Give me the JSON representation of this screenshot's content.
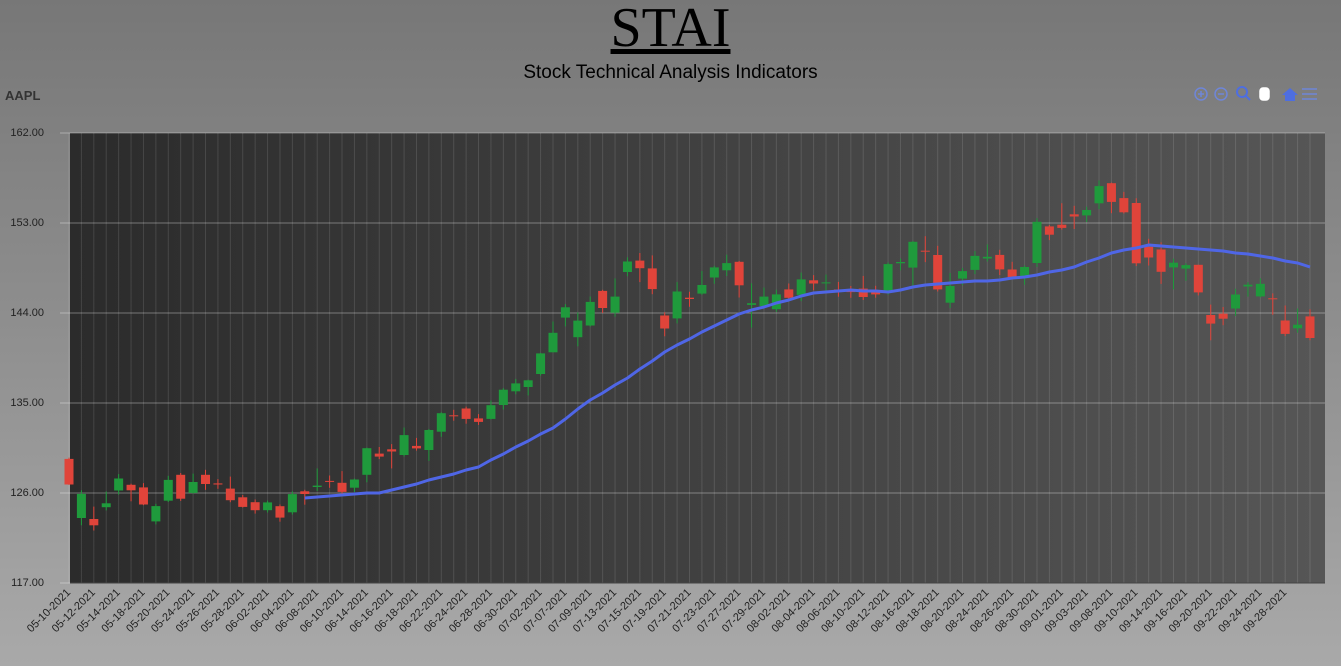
{
  "chart_data": {
    "type": "candlestick",
    "title": "STAI",
    "subtitle": "Stock Technical Analysis Indicators",
    "ticker": "AAPL",
    "categories": [
      "05-10-2021",
      null,
      "05-12-2021",
      null,
      "05-14-2021",
      null,
      "05-18-2021",
      null,
      "05-20-2021",
      null,
      "05-24-2021",
      null,
      "05-26-2021",
      null,
      "05-28-2021",
      null,
      "06-02-2021",
      null,
      "06-04-2021",
      null,
      "06-08-2021",
      null,
      "06-10-2021",
      null,
      "06-14-2021",
      null,
      "06-16-2021",
      null,
      "06-18-2021",
      null,
      "06-22-2021",
      null,
      "06-24-2021",
      null,
      "06-28-2021",
      null,
      "06-30-2021",
      null,
      "07-02-2021",
      null,
      "07-07-2021",
      null,
      "07-09-2021",
      null,
      "07-13-2021",
      null,
      "07-15-2021",
      null,
      "07-19-2021",
      null,
      "07-21-2021",
      null,
      "07-23-2021",
      null,
      "07-27-2021",
      null,
      "07-29-2021",
      null,
      "08-02-2021",
      null,
      "08-04-2021",
      null,
      "08-06-2021",
      null,
      "08-10-2021",
      null,
      "08-12-2021",
      null,
      "08-16-2021",
      null,
      "08-18-2021",
      null,
      "08-20-2021",
      null,
      "08-24-2021",
      null,
      "08-26-2021",
      null,
      "08-30-2021",
      null,
      "09-01-2021",
      null,
      "09-03-2021",
      null,
      "09-08-2021",
      null,
      "09-10-2021",
      null,
      "09-14-2021",
      null,
      "09-16-2021",
      null,
      "09-20-2021",
      null,
      "09-22-2021",
      null,
      "09-24-2021",
      null,
      "09-28-2021",
      null,
      null
    ],
    "open": [
      129.41,
      123.5,
      123.4,
      124.58,
      126.25,
      126.82,
      126.56,
      123.16,
      125.23,
      127.82,
      126.01,
      127.82,
      126.96,
      126.44,
      125.57,
      125.08,
      124.28,
      124.68,
      124.07,
      126.17,
      126.6,
      127.21,
      127.02,
      126.53,
      127.82,
      129.94,
      130.37,
      129.8,
      130.71,
      130.3,
      132.13,
      133.77,
      134.45,
      133.46,
      133.41,
      134.8,
      136.17,
      136.6,
      137.9,
      140.07,
      143.54,
      141.58,
      142.75,
      146.21,
      144.03,
      148.1,
      149.24,
      148.46,
      143.75,
      143.46,
      145.53,
      145.94,
      147.55,
      148.27,
      149.12,
      144.81,
      144.69,
      144.38,
      146.36,
      145.81,
      147.27,
      146.98,
      146.35,
      146.2,
      146.44,
      146.05,
      146.19,
      148.97,
      148.54,
      150.23,
      149.8,
      145.03,
      147.44,
      148.31,
      149.45,
      149.81,
      148.35,
      147.48,
      149.0,
      152.66,
      152.83,
      153.87,
      153.76,
      154.97,
      156.98,
      155.49,
      155.0,
      150.63,
      150.35,
      148.56,
      148.44,
      148.82,
      143.8,
      143.93,
      144.45,
      146.65,
      145.66,
      145.47,
      143.25,
      142.47,
      143.66
    ],
    "high": [
      129.54,
      126.27,
      124.64,
      126.15,
      127.89,
      126.93,
      126.99,
      124.92,
      127.72,
      128.0,
      127.94,
      128.32,
      127.39,
      127.64,
      125.8,
      125.35,
      125.24,
      124.85,
      126.16,
      126.32,
      128.46,
      127.75,
      128.19,
      127.44,
      130.54,
      130.6,
      130.89,
      132.55,
      131.51,
      132.41,
      134.08,
      134.32,
      134.64,
      133.89,
      135.25,
      136.49,
      137.41,
      137.33,
      140.0,
      143.15,
      144.89,
      144.06,
      145.65,
      146.32,
      147.46,
      149.57,
      150.0,
      149.76,
      144.07,
      147.1,
      146.13,
      148.2,
      148.72,
      149.83,
      149.21,
      146.97,
      146.55,
      146.33,
      146.95,
      148.04,
      147.79,
      147.84,
      147.11,
      146.7,
      147.71,
      146.72,
      149.05,
      149.44,
      151.19,
      151.68,
      150.72,
      148.0,
      148.5,
      150.19,
      150.86,
      150.32,
      149.12,
      148.75,
      153.49,
      152.8,
      154.98,
      154.72,
      154.63,
      157.26,
      157.04,
      156.11,
      155.48,
      151.42,
      151.07,
      149.44,
      148.97,
      148.82,
      144.84,
      144.6,
      146.43,
      147.08,
      147.47,
      145.96,
      144.75,
      144.45,
      144.38
    ],
    "low": [
      126.81,
      122.77,
      122.25,
      124.26,
      125.85,
      125.17,
      124.78,
      122.86,
      125.1,
      125.21,
      125.94,
      126.32,
      126.42,
      125.08,
      124.55,
      123.94,
      124.05,
      123.13,
      123.85,
      124.83,
      126.21,
      126.52,
      125.94,
      126.1,
      127.07,
      129.39,
      128.46,
      129.65,
      130.24,
      129.21,
      131.62,
      133.23,
      132.93,
      132.81,
      133.35,
      134.35,
      135.87,
      135.76,
      137.75,
      140.07,
      142.66,
      140.67,
      142.65,
      144.0,
      143.63,
      147.68,
      147.09,
      145.88,
      141.67,
      142.96,
      144.63,
      145.81,
      146.92,
      147.7,
      145.55,
      142.54,
      144.58,
      144.11,
      145.25,
      145.18,
      146.28,
      146.17,
      145.63,
      145.52,
      145.3,
      145.53,
      145.84,
      148.27,
      146.47,
      149.09,
      146.15,
      144.5,
      146.78,
      147.89,
      149.15,
      147.8,
      147.51,
      146.83,
      148.61,
      151.29,
      152.34,
      152.4,
      153.09,
      154.39,
      153.98,
      153.95,
      148.7,
      148.75,
      146.91,
      146.37,
      147.22,
      145.76,
      141.27,
      142.78,
      143.7,
      145.64,
      145.56,
      143.82,
      141.69,
      142.03,
      141.28
    ],
    "close": [
      126.85,
      125.91,
      122.77,
      124.97,
      127.45,
      126.27,
      124.85,
      124.69,
      127.31,
      125.43,
      127.1,
      126.9,
      126.85,
      125.28,
      124.61,
      124.28,
      125.06,
      123.54,
      125.89,
      125.9,
      126.74,
      127.13,
      126.11,
      127.35,
      130.48,
      129.64,
      130.15,
      131.79,
      130.46,
      132.3,
      133.98,
      133.7,
      133.41,
      133.11,
      134.78,
      136.33,
      136.96,
      137.27,
      139.96,
      142.02,
      144.57,
      143.24,
      145.11,
      144.5,
      145.64,
      149.15,
      148.48,
      146.39,
      142.45,
      146.15,
      145.4,
      146.8,
      148.56,
      148.99,
      146.77,
      144.98,
      145.64,
      145.86,
      145.52,
      147.36,
      146.95,
      147.06,
      146.14,
      146.09,
      145.6,
      145.86,
      148.89,
      149.1,
      151.12,
      150.19,
      146.36,
      146.7,
      148.19,
      149.71,
      149.62,
      148.36,
      147.54,
      148.6,
      153.12,
      151.83,
      152.51,
      153.65,
      154.3,
      156.69,
      155.11,
      154.07,
      148.97,
      149.55,
      148.12,
      149.03,
      148.79,
      146.06,
      142.94,
      143.43,
      145.85,
      146.83,
      146.92,
      145.37,
      141.91,
      142.83,
      141.5
    ],
    "up_color": "#1f9a3c",
    "down_color": "#e0443a",
    "line": {
      "color": "#4f66e6",
      "values": [
        null,
        null,
        null,
        null,
        null,
        null,
        null,
        null,
        null,
        null,
        null,
        null,
        null,
        null,
        null,
        null,
        null,
        null,
        null,
        125.5,
        125.6,
        125.7,
        125.8,
        125.9,
        126.0,
        126.0,
        126.3,
        126.6,
        126.9,
        127.3,
        127.6,
        127.9,
        128.3,
        128.6,
        129.3,
        129.9,
        130.6,
        131.2,
        131.9,
        132.5,
        133.4,
        134.4,
        135.3,
        136.0,
        136.8,
        137.5,
        138.4,
        139.2,
        140.1,
        140.8,
        141.4,
        142.1,
        142.7,
        143.3,
        143.9,
        144.3,
        144.6,
        145.0,
        145.3,
        145.7,
        146.0,
        146.1,
        146.2,
        146.3,
        146.2,
        146.2,
        146.1,
        146.3,
        146.6,
        146.8,
        146.9,
        147.0,
        147.1,
        147.2,
        147.2,
        147.3,
        147.5,
        147.6,
        147.8,
        148.1,
        148.3,
        148.6,
        149.1,
        149.5,
        150.0,
        150.3,
        150.5,
        150.8,
        150.7,
        150.6,
        150.5,
        150.4,
        150.3,
        150.2,
        150.0,
        149.9,
        149.7,
        149.5,
        149.2,
        149.0,
        148.6
      ]
    },
    "ylim": [
      117,
      162
    ],
    "yticks": [
      {
        "value": 117,
        "label": "117.00"
      },
      {
        "value": 126,
        "label": "126.00"
      },
      {
        "value": 135,
        "label": "135.00"
      },
      {
        "value": 144,
        "label": "144.00"
      },
      {
        "value": 153,
        "label": "153.00"
      },
      {
        "value": 162,
        "label": "162.00"
      }
    ],
    "grid": true
  }
}
